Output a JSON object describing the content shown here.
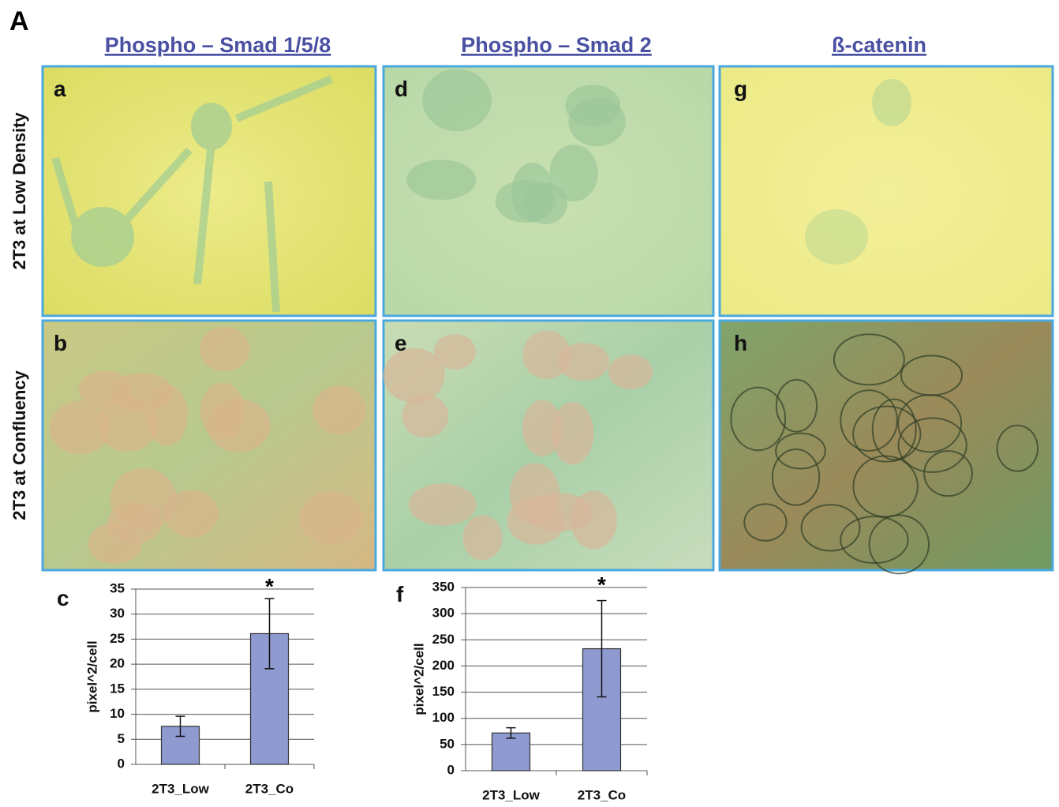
{
  "figure_label": "A",
  "columns": [
    "Phospho – Smad 1/5/8",
    "Phospho – Smad 2",
    "ß-catenin"
  ],
  "rows": [
    "2T3 at Low Density",
    "2T3 at Confluency"
  ],
  "panels": [
    "a",
    "b",
    "d",
    "e",
    "g",
    "h"
  ],
  "chart_data": [
    {
      "type": "bar",
      "label": "c",
      "ylabel": "pixel^2/cell",
      "categories": [
        "2T3_Low",
        "2T3_Co"
      ],
      "values": [
        7.6,
        26.1
      ],
      "errors": [
        2,
        7
      ],
      "significance": [
        null,
        "*"
      ],
      "color": "#8e9ad0",
      "ylim": [
        0,
        35
      ],
      "yticks": [
        0,
        5,
        10,
        15,
        20,
        25,
        30,
        35
      ],
      "grid": true
    },
    {
      "type": "bar",
      "label": "f",
      "ylabel": "pixel^2/cell",
      "categories": [
        "2T3_Low",
        "2T3_Co"
      ],
      "values": [
        72,
        233
      ],
      "errors": [
        10,
        92
      ],
      "significance": [
        null,
        "*"
      ],
      "color": "#8e9ad0",
      "ylim": [
        0,
        350
      ],
      "yticks": [
        0,
        50,
        100,
        150,
        200,
        250,
        300,
        350
      ],
      "grid": true
    }
  ]
}
